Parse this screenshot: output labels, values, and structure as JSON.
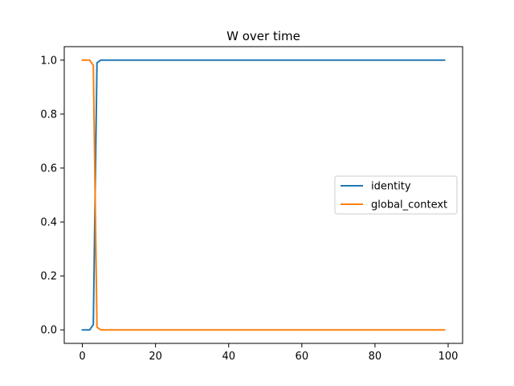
{
  "chart_data": {
    "type": "line",
    "title": "W over time",
    "xlabel": "",
    "ylabel": "",
    "xlim": [
      -4.95,
      103.95
    ],
    "ylim": [
      -0.05,
      1.05
    ],
    "x_ticks": [
      0,
      20,
      40,
      60,
      80,
      100
    ],
    "x_tick_labels": [
      "0",
      "20",
      "40",
      "60",
      "80",
      "100"
    ],
    "y_ticks": [
      0.0,
      0.2,
      0.4,
      0.6,
      0.8,
      1.0
    ],
    "y_tick_labels": [
      "0.0",
      "0.2",
      "0.4",
      "0.6",
      "0.8",
      "1.0"
    ],
    "grid": false,
    "legend_position": "center-right",
    "series": [
      {
        "name": "identity",
        "color": "#1f77b4",
        "x": [
          0,
          1,
          2,
          3,
          4,
          5,
          6,
          7,
          8,
          9,
          10,
          20,
          30,
          40,
          50,
          60,
          70,
          80,
          90,
          99
        ],
        "values": [
          0.0,
          0.0,
          0.0,
          0.02,
          0.99,
          1.0,
          1.0,
          1.0,
          1.0,
          1.0,
          1.0,
          1.0,
          1.0,
          1.0,
          1.0,
          1.0,
          1.0,
          1.0,
          1.0,
          1.0
        ]
      },
      {
        "name": "global_context",
        "color": "#ff7f0e",
        "x": [
          0,
          1,
          2,
          3,
          4,
          5,
          6,
          7,
          8,
          9,
          10,
          20,
          30,
          40,
          50,
          60,
          70,
          80,
          90,
          99
        ],
        "values": [
          1.0,
          1.0,
          1.0,
          0.98,
          0.01,
          0.0,
          0.0,
          0.0,
          0.0,
          0.0,
          0.0,
          0.0,
          0.0,
          0.0,
          0.0,
          0.0,
          0.0,
          0.0,
          0.0,
          0.0
        ]
      }
    ]
  }
}
